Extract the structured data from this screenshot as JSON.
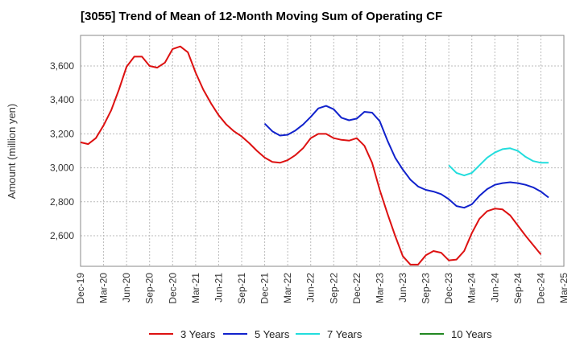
{
  "chart_data": {
    "type": "line",
    "title": "[3055]  Trend of Mean of 12-Month Moving Sum of Operating CF",
    "xlabel": "",
    "ylabel": "Amount (million yen)",
    "ylim": [
      2420,
      3780
    ],
    "yticks": [
      2600,
      2800,
      3000,
      3200,
      3400,
      3600
    ],
    "ytick_labels": [
      "2,600",
      "2,800",
      "3,000",
      "3,200",
      "3,400",
      "3,600"
    ],
    "xtick_labels": [
      "Dec-19",
      "Mar-20",
      "Jun-20",
      "Sep-20",
      "Dec-20",
      "Mar-21",
      "Jun-21",
      "Sep-21",
      "Dec-21",
      "Mar-22",
      "Jun-22",
      "Sep-22",
      "Dec-22",
      "Mar-23",
      "Jun-23",
      "Sep-23",
      "Dec-23",
      "Mar-24",
      "Jun-24",
      "Sep-24",
      "Dec-24",
      "Mar-25"
    ],
    "grid": true,
    "legend_position": "bottom",
    "series": [
      {
        "name": "3 Years",
        "color": "#dd1111",
        "start_index": 0,
        "values": [
          3150,
          3140,
          3175,
          3250,
          3340,
          3460,
          3595,
          3655,
          3655,
          3600,
          3590,
          3620,
          3700,
          3715,
          3680,
          3560,
          3460,
          3380,
          3310,
          3255,
          3215,
          3185,
          3145,
          3100,
          3060,
          3035,
          3030,
          3045,
          3075,
          3115,
          3175,
          3200,
          3200,
          3175,
          3165,
          3160,
          3175,
          3130,
          3030,
          2870,
          2730,
          2600,
          2480,
          2430,
          2430,
          2485,
          2510,
          2500,
          2455,
          2460,
          2510,
          2615,
          2700,
          2745,
          2760,
          2755,
          2720,
          2660,
          2600,
          2545,
          2490
        ]
      },
      {
        "name": "5 Years",
        "color": "#1122cc",
        "start_index": 24,
        "values": [
          3260,
          3215,
          3190,
          3195,
          3220,
          3255,
          3300,
          3350,
          3365,
          3345,
          3295,
          3280,
          3290,
          3330,
          3325,
          3275,
          3160,
          3060,
          2990,
          2930,
          2890,
          2870,
          2860,
          2845,
          2815,
          2775,
          2765,
          2785,
          2835,
          2875,
          2900,
          2910,
          2915,
          2910,
          2900,
          2885,
          2860,
          2825
        ]
      },
      {
        "name": "7 Years",
        "color": "#22dddd",
        "start_index": 48,
        "values": [
          3015,
          2970,
          2955,
          2970,
          3015,
          3060,
          3090,
          3110,
          3115,
          3100,
          3065,
          3040,
          3030,
          3030
        ]
      },
      {
        "name": "10 Years",
        "color": "#228822",
        "start_index": 0,
        "values": []
      }
    ]
  }
}
